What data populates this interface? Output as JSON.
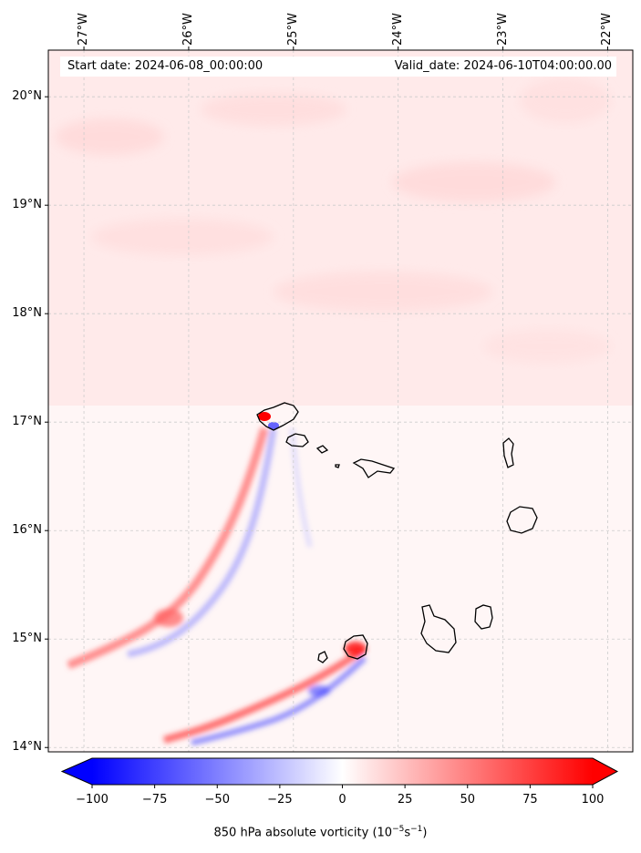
{
  "map": {
    "start_date": "Start date: 2024-06-08_00:00:00",
    "valid_date": "Valid_date: 2024-06-10T04:00:00.00",
    "lon_labels": [
      "27°W",
      "26°W",
      "25°W",
      "24°W",
      "23°W",
      "22°W"
    ],
    "lat_labels": [
      "20°N",
      "19°N",
      "18°N",
      "17°N",
      "16°N",
      "15°N",
      "14°N"
    ],
    "lon_values": [
      -27,
      -26,
      -25,
      -24,
      -23,
      -22
    ],
    "lat_values": [
      20,
      19,
      18,
      17,
      16,
      15,
      14
    ],
    "extent": {
      "lon_min": -27.34,
      "lon_max": -21.76,
      "lat_min": 13.96,
      "lat_max": 20.43
    },
    "field": "850 hPa absolute vorticity",
    "islands": [
      "Santo Antão",
      "São Vicente",
      "Santa Luzia",
      "São Nicolau",
      "Sal",
      "Boa Vista",
      "Maio",
      "Santiago",
      "Fogo",
      "Brava"
    ]
  },
  "colorbar": {
    "ticks": [
      "−100",
      "−75",
      "−50",
      "−25",
      "0",
      "25",
      "50",
      "75",
      "100"
    ],
    "tick_values": [
      -100,
      -75,
      -50,
      -25,
      0,
      25,
      50,
      75,
      100
    ],
    "label_main": "850 hPa absolute vorticity (10",
    "label_exp1": "−5",
    "label_mid": "s",
    "label_exp2": "−1",
    "label_end": ")",
    "colors": {
      "negative": "#0000ff",
      "zero": "#ffffff",
      "positive": "#ff0000"
    }
  }
}
